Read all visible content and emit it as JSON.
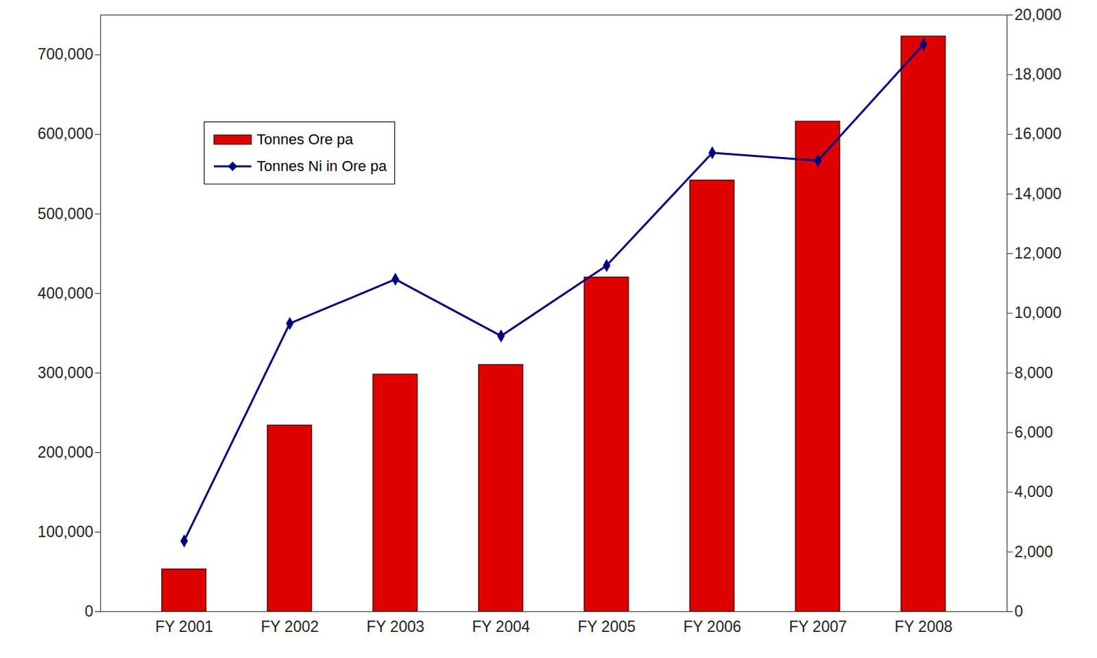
{
  "chart_data": {
    "type": "bar",
    "categories": [
      "FY 2001",
      "FY 2002",
      "FY 2003",
      "FY 2004",
      "FY 2005",
      "FY 2006",
      "FY 2007",
      "FY 2008"
    ],
    "series": [
      {
        "name": "Tonnes Ore pa",
        "type": "bar",
        "color": "#e00000",
        "values": [
          53000,
          234000,
          298000,
          310000,
          420000,
          542000,
          616000,
          723000
        ]
      },
      {
        "name": "Tonnes Ni in Ore pa",
        "type": "line",
        "axis": "y2",
        "color": "#00007f",
        "marker": "diamond",
        "line_style": "solid",
        "values": [
          2370,
          9660,
          11140,
          9240,
          11600,
          15380,
          15120,
          19020
        ]
      }
    ],
    "ylim": [
      0,
      750000
    ],
    "yticks": [
      0,
      {
        "value": 100000,
        "label": "100,000"
      },
      {
        "value": 200000,
        "label": "200,000"
      },
      {
        "value": 300000,
        "label": "300,000"
      },
      {
        "value": 400000,
        "label": "400,000"
      },
      {
        "value": 500000,
        "label": "500,000"
      },
      {
        "value": 600000,
        "label": "600,000"
      },
      {
        "value": 700000,
        "label": "700,000"
      }
    ],
    "y2lim": [
      0,
      20000
    ],
    "y2ticks": [
      0,
      {
        "value": 2000,
        "label": "2,000"
      },
      {
        "value": 4000,
        "label": "4,000"
      },
      {
        "value": 6000,
        "label": "6,000"
      },
      {
        "value": 8000,
        "label": "8,000"
      },
      {
        "value": 10000,
        "label": "10,000"
      },
      {
        "value": 12000,
        "label": "12,000"
      },
      {
        "value": 14000,
        "label": "14,000"
      },
      {
        "value": 16000,
        "label": "16,000"
      },
      {
        "value": 18000,
        "label": "18,000"
      },
      {
        "value": 20000,
        "label": "20,000"
      }
    ],
    "legend": "upper left",
    "grid": false
  }
}
